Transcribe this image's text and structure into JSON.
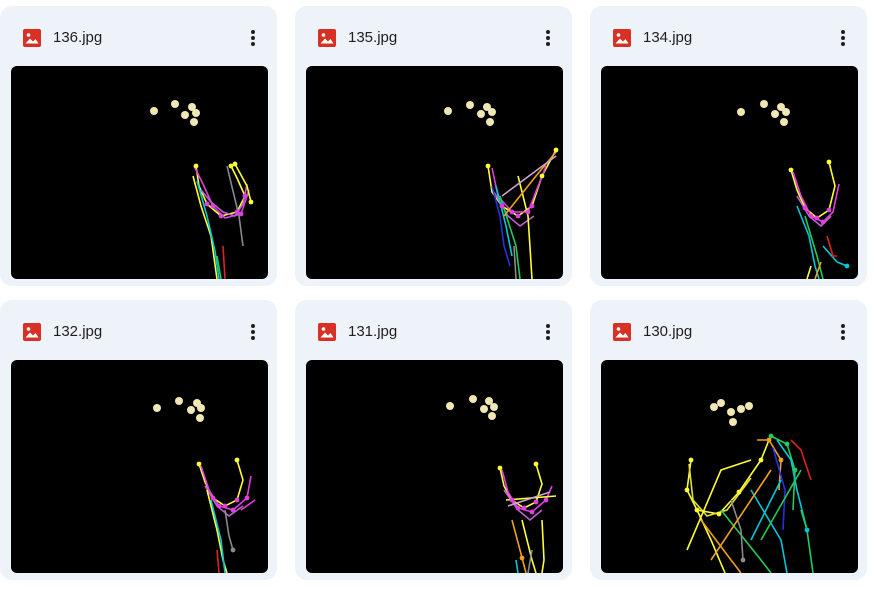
{
  "files": [
    {
      "name": "136.jpg",
      "icon": "image-file-icon",
      "variant": "a"
    },
    {
      "name": "135.jpg",
      "icon": "image-file-icon",
      "variant": "b"
    },
    {
      "name": "134.jpg",
      "icon": "image-file-icon",
      "variant": "c"
    },
    {
      "name": "132.jpg",
      "icon": "image-file-icon",
      "variant": "d"
    },
    {
      "name": "131.jpg",
      "icon": "image-file-icon",
      "variant": "e"
    },
    {
      "name": "130.jpg",
      "icon": "image-file-icon",
      "variant": "f"
    }
  ],
  "colors": {
    "card_bg": "#eef2f9",
    "icon_red": "#d93025",
    "text": "#1f1f1f",
    "thumb_bg": "#000000",
    "dots": "#f1e7b5",
    "magenta": "#e040e0",
    "yellow": "#ffff33",
    "cyan": "#00c8d8",
    "gray": "#8a8a8a",
    "orange": "#ff8c1a",
    "green": "#22cc55",
    "blue": "#2233dd",
    "red": "#dd2222"
  }
}
